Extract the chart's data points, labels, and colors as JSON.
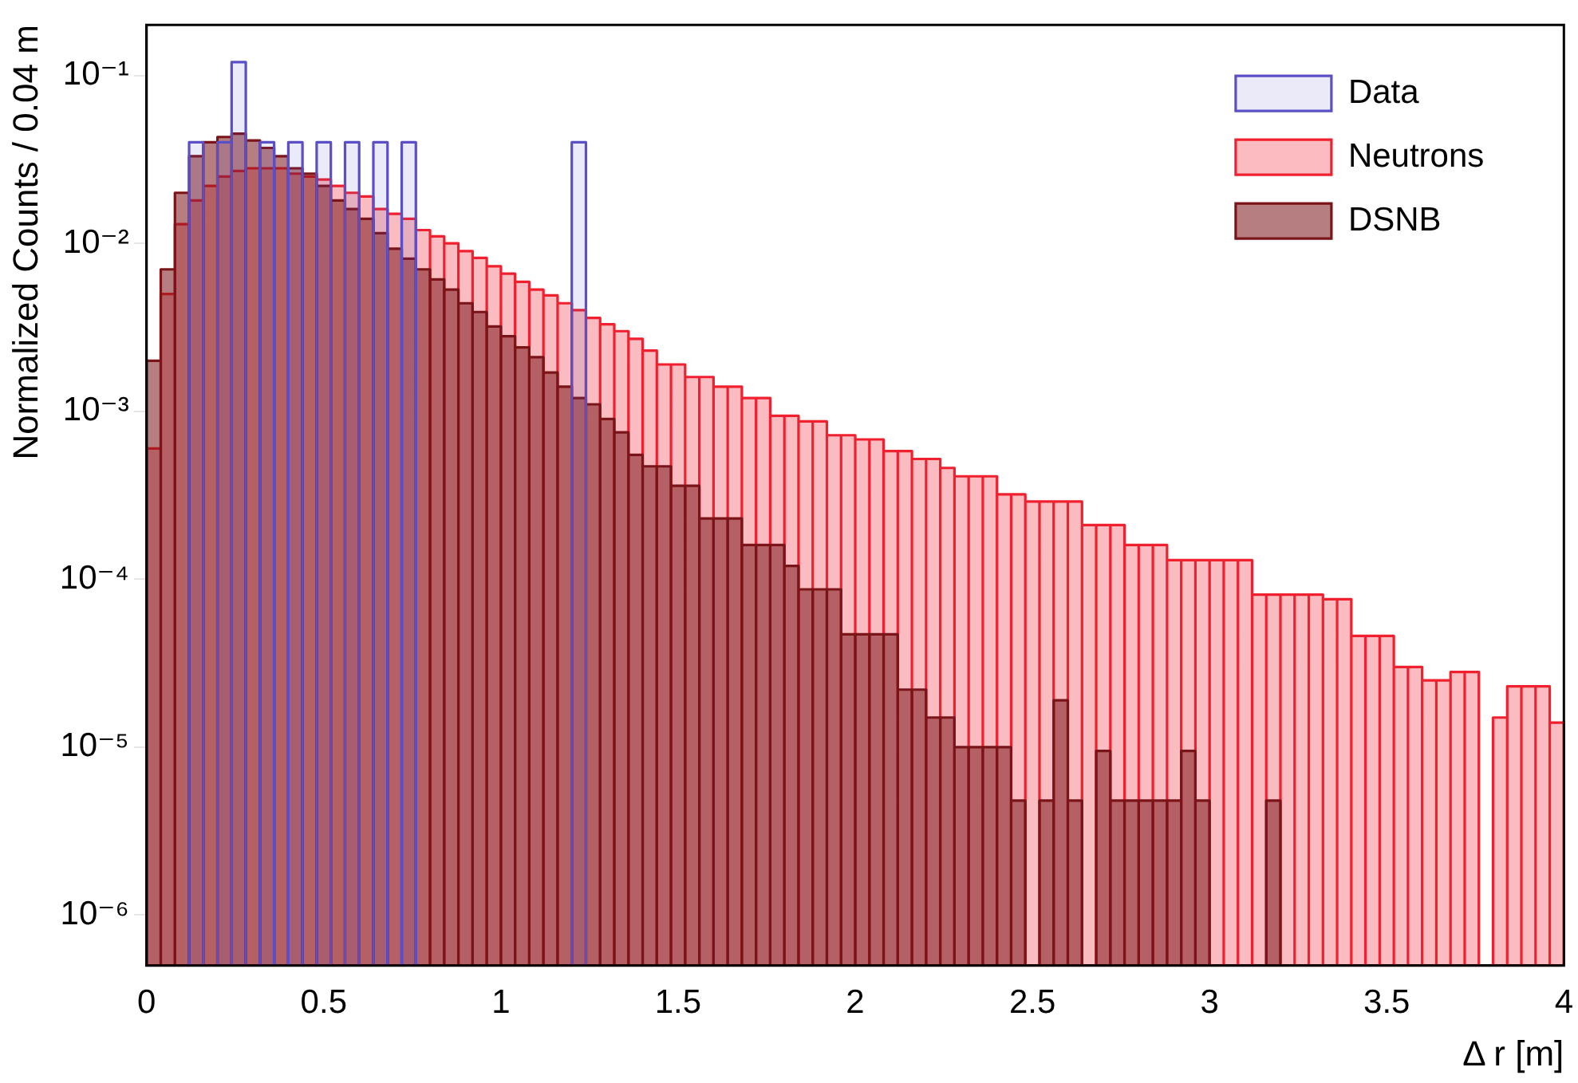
{
  "chart_data": {
    "type": "histogram",
    "xlabel": "Δ r [m]",
    "ylabel": "Normalized Counts / 0.04 m",
    "bins": [
      0,
      0.04,
      0.08,
      0.12,
      0.16,
      0.2,
      0.24,
      0.28,
      0.32,
      0.36,
      0.4,
      0.44,
      0.48,
      0.52,
      0.56,
      0.6,
      0.64,
      0.68,
      0.72,
      0.76,
      0.8,
      0.84,
      0.88,
      0.92,
      0.96,
      1,
      1.04,
      1.08,
      1.12,
      1.16,
      1.2,
      1.24,
      1.28,
      1.32,
      1.36,
      1.4,
      1.44,
      1.48,
      1.52,
      1.56,
      1.6,
      1.64,
      1.68,
      1.72,
      1.76,
      1.8,
      1.84,
      1.88,
      1.92,
      1.96,
      2,
      2.04,
      2.08,
      2.12,
      2.16,
      2.2,
      2.24,
      2.28,
      2.32,
      2.36,
      2.4,
      2.44,
      2.48,
      2.52,
      2.56,
      2.6,
      2.64,
      2.68,
      2.72,
      2.76,
      2.8,
      2.84,
      2.88,
      2.92,
      2.96,
      3,
      3.04,
      3.08,
      3.12,
      3.16,
      3.2,
      3.24,
      3.28,
      3.32,
      3.36,
      3.4,
      3.44,
      3.48,
      3.52,
      3.56,
      3.6,
      3.64,
      3.68,
      3.72,
      3.76,
      3.8,
      3.84,
      3.88,
      3.92,
      3.96,
      4
    ],
    "series": [
      {
        "name": "Data",
        "type": "histogram",
        "color": "#5b4fc8",
        "values": [
          null,
          null,
          null,
          0.04,
          null,
          0.04,
          0.12,
          null,
          0.04,
          null,
          0.04,
          null,
          0.04,
          null,
          0.04,
          null,
          0.04,
          null,
          0.04,
          null,
          null,
          null,
          null,
          null,
          null,
          null,
          null,
          null,
          null,
          null,
          0.04,
          null,
          null,
          null,
          null,
          null,
          null,
          null,
          null,
          null,
          null,
          null,
          null,
          null,
          null,
          null,
          null,
          null,
          null,
          null,
          null,
          null,
          null,
          null,
          null,
          null,
          null,
          null,
          null,
          null,
          null,
          null,
          null,
          null,
          null,
          null,
          null,
          null,
          null,
          null,
          null,
          null,
          null,
          null,
          null,
          null,
          null,
          null,
          null,
          null,
          null,
          null,
          null,
          null,
          null,
          null,
          null,
          null,
          null,
          null,
          null,
          null,
          null,
          null,
          null,
          null,
          null,
          null,
          null,
          null
        ]
      },
      {
        "name": "Neutrons",
        "type": "histogram",
        "color": "#f0202e",
        "values": [
          0.0006,
          0.005,
          0.013,
          0.018,
          0.022,
          0.025,
          0.027,
          0.028,
          0.028,
          0.028,
          0.026,
          0.025,
          0.024,
          0.022,
          0.02,
          0.019,
          0.016,
          0.015,
          0.014,
          0.012,
          0.011,
          0.01,
          0.009,
          0.0082,
          0.0073,
          0.0066,
          0.0059,
          0.0053,
          0.0049,
          0.0044,
          0.004,
          0.0036,
          0.0033,
          0.003,
          0.0027,
          0.0023,
          0.0019,
          0.0019,
          0.0016,
          0.0016,
          0.0014,
          0.0014,
          0.0012,
          0.0012,
          0.00094,
          0.00094,
          0.00087,
          0.00087,
          0.00072,
          0.00072,
          0.00068,
          0.00068,
          0.00058,
          0.00058,
          0.00052,
          0.00052,
          0.00046,
          0.00041,
          0.00041,
          0.00041,
          0.00032,
          0.00032,
          0.00029,
          0.00029,
          0.00029,
          0.00029,
          0.00021,
          0.00021,
          0.00021,
          0.00016,
          0.00016,
          0.00016,
          0.00013,
          0.00013,
          0.00013,
          0.00013,
          0.00013,
          0.00013,
          8.1e-05,
          8.1e-05,
          8.1e-05,
          8.1e-05,
          8.1e-05,
          7.6e-05,
          7.6e-05,
          4.6e-05,
          4.6e-05,
          4.6e-05,
          3e-05,
          3e-05,
          2.5e-05,
          2.5e-05,
          2.8e-05,
          2.8e-05,
          null,
          1.5e-05,
          2.3e-05,
          2.3e-05,
          2.3e-05,
          1.4e-05
        ]
      },
      {
        "name": "DSNB",
        "type": "histogram",
        "color": "#7a1418",
        "values": [
          0.002,
          0.007,
          0.02,
          0.033,
          0.04,
          0.043,
          0.045,
          0.041,
          0.037,
          0.033,
          0.028,
          0.026,
          0.022,
          0.018,
          0.016,
          0.014,
          0.0115,
          0.0093,
          0.0081,
          0.007,
          0.0061,
          0.0053,
          0.0044,
          0.0039,
          0.0032,
          0.0028,
          0.0024,
          0.0021,
          0.0017,
          0.0014,
          0.0012,
          0.0011,
          0.0009,
          0.00075,
          0.00055,
          0.00047,
          0.00047,
          0.00036,
          0.00036,
          0.00023,
          0.00023,
          0.00023,
          0.00016,
          0.00016,
          0.00016,
          0.00012,
          8.7e-05,
          8.7e-05,
          8.7e-05,
          4.7e-05,
          4.7e-05,
          4.7e-05,
          4.7e-05,
          2.2e-05,
          2.2e-05,
          1.5e-05,
          1.5e-05,
          1e-05,
          1e-05,
          1e-05,
          1e-05,
          4.8e-06,
          null,
          4.8e-06,
          1.9e-05,
          4.8e-06,
          null,
          9.5e-06,
          4.8e-06,
          4.8e-06,
          4.8e-06,
          4.8e-06,
          4.8e-06,
          9.5e-06,
          4.8e-06,
          null,
          null,
          null,
          null,
          4.8e-06,
          null,
          null,
          null,
          null,
          null,
          null,
          null,
          null,
          null,
          null,
          null,
          null,
          null,
          null,
          null,
          null,
          null,
          null,
          null,
          null
        ]
      }
    ],
    "xlim": [
      0,
      4
    ],
    "xticks": [
      0,
      0.5,
      1,
      1.5,
      2,
      2.5,
      3,
      3.5,
      4
    ],
    "log": "y",
    "ylim": [
      5e-07,
      0.2
    ],
    "yticks": [
      {
        "value": 1e-06,
        "label": "10⁻⁶"
      },
      {
        "value": 1e-05,
        "label": "10⁻⁵"
      },
      {
        "value": 0.0001,
        "label": "10⁻⁴"
      },
      {
        "value": 0.001,
        "label": "10⁻³"
      },
      {
        "value": 0.01,
        "label": "10⁻²"
      },
      {
        "value": 0.1,
        "label": "10⁻¹"
      }
    ],
    "legend": "top right",
    "grid": false
  }
}
